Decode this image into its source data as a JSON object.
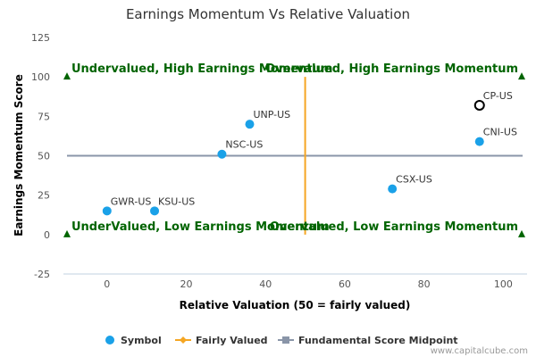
{
  "chart_data": {
    "type": "scatter",
    "title": "Earnings Momentum Vs Relative Valuation",
    "xlabel": "Relative Valuation (50 = fairly valued)",
    "ylabel": "Earnings Momentum Score",
    "xlim": [
      -11,
      106
    ],
    "ylim": [
      -25,
      125
    ],
    "x_ticks": [
      0,
      20,
      40,
      60,
      80,
      100
    ],
    "y_ticks": [
      -25,
      0,
      25,
      50,
      75,
      100,
      125
    ],
    "fair_value_x": 50,
    "midpoint_y": 50,
    "points": [
      {
        "symbol": "GWR-US",
        "x": 0,
        "y": 15,
        "highlight": false
      },
      {
        "symbol": "KSU-US",
        "x": 12,
        "y": 15,
        "highlight": false
      },
      {
        "symbol": "NSC-US",
        "x": 29,
        "y": 51,
        "highlight": false
      },
      {
        "symbol": "UNP-US",
        "x": 36,
        "y": 70,
        "highlight": false
      },
      {
        "symbol": "CSX-US",
        "x": 72,
        "y": 29,
        "highlight": false
      },
      {
        "symbol": "CNI-US",
        "x": 94,
        "y": 59,
        "highlight": false
      },
      {
        "symbol": "CP-US",
        "x": 94,
        "y": 82,
        "highlight": true
      }
    ],
    "quadrant_labels": {
      "top_left": "Undervalued, High Earnings Momentum",
      "top_right": "Overvalued, High Earnings Momentum",
      "bottom_left": "UnderValued, Low Earnings Momentum",
      "bottom_right": "Overvalued, Low Earnings Momentum"
    },
    "legend": [
      "Symbol",
      "Fairly Valued",
      "Fundamental Score Midpoint"
    ],
    "legend_position": "bottom",
    "colors": {
      "points": "#1aa1e8",
      "fair_value_line": "#f5a623",
      "midpoint_line": "#8a95a8",
      "quadrant_text": "#006400",
      "marker_triangle": "#006400"
    },
    "watermark": "www.capitalcube.com"
  }
}
